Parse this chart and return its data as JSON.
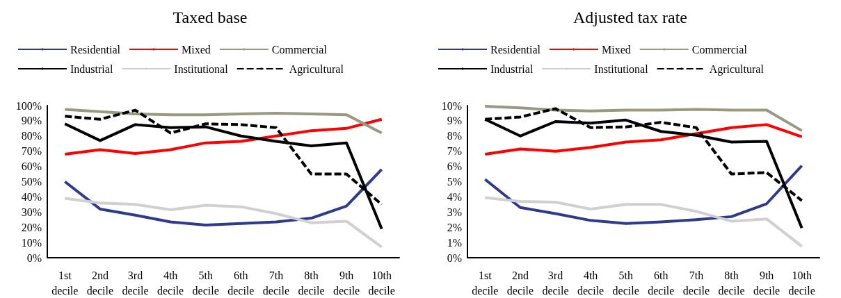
{
  "chart_data": [
    {
      "type": "line",
      "title": "Taxed base",
      "categories": [
        "1st decile",
        "2nd decile",
        "3rd decile",
        "4th decile",
        "5th decile",
        "6th decile",
        "7th decile",
        "8th decile",
        "9th decile",
        "10th decile"
      ],
      "ylim": [
        0,
        100
      ],
      "yticks": [
        {
          "value": 0,
          "label": "0%"
        },
        {
          "value": 10,
          "label": "10%"
        },
        {
          "value": 20,
          "label": "20%"
        },
        {
          "value": 30,
          "label": "30%"
        },
        {
          "value": 40,
          "label": "40%"
        },
        {
          "value": 50,
          "label": "50%"
        },
        {
          "value": 60,
          "label": "60%"
        },
        {
          "value": 70,
          "label": "70%"
        },
        {
          "value": 80,
          "label": "80%"
        },
        {
          "value": 90,
          "label": "90%"
        },
        {
          "value": 100,
          "label": "100%"
        }
      ],
      "grid": false,
      "legend": "top",
      "marker": "none",
      "series": [
        {
          "name": "Residential",
          "color": "#2e3a8c",
          "values": [
            50,
            32,
            28,
            23.5,
            21.5,
            22.5,
            23.5,
            26,
            34,
            58
          ]
        },
        {
          "name": "Mixed",
          "color": "#ff0000",
          "values": [
            68,
            71,
            68.5,
            71,
            75.5,
            76.5,
            80,
            83.5,
            85,
            91
          ]
        },
        {
          "name": "Commercial",
          "color": "#999980",
          "values": [
            97.5,
            96,
            94.5,
            94,
            94,
            94.5,
            95,
            94.5,
            94,
            82
          ]
        },
        {
          "name": "Industrial",
          "color": "#000000",
          "values": [
            88,
            77,
            87.5,
            85.5,
            86,
            80,
            76.5,
            73.5,
            75.5,
            19
          ]
        },
        {
          "name": "Institutional",
          "color": "#d0d0d0",
          "values": [
            39,
            36,
            35,
            31.5,
            34.5,
            33.5,
            29,
            23,
            24,
            7
          ]
        },
        {
          "name": "Agricultural",
          "color": "#000000",
          "line_style": "dashed",
          "values": [
            93,
            91,
            97,
            82,
            88,
            87.5,
            85.5,
            55,
            55,
            35
          ]
        }
      ]
    },
    {
      "type": "line",
      "title": "Adjusted tax rate",
      "categories": [
        "1st decile",
        "2nd decile",
        "3rd decile",
        "4th decile",
        "5th decile",
        "6th decile",
        "7th decile",
        "8th decile",
        "9th decile",
        "10th decile"
      ],
      "ylim": [
        0,
        10
      ],
      "yticks": [
        {
          "value": 0,
          "label": "0%"
        },
        {
          "value": 1,
          "label": "1%"
        },
        {
          "value": 2,
          "label": "2%"
        },
        {
          "value": 3,
          "label": "3%"
        },
        {
          "value": 4,
          "label": "4%"
        },
        {
          "value": 5,
          "label": "5%"
        },
        {
          "value": 6,
          "label": "6%"
        },
        {
          "value": 7,
          "label": "7%"
        },
        {
          "value": 8,
          "label": "8%"
        },
        {
          "value": 9,
          "label": "9%"
        },
        {
          "value": 10,
          "label": "10%"
        }
      ],
      "grid": false,
      "legend": "top",
      "marker": "none",
      "series": [
        {
          "name": "Residential",
          "color": "#2e3a8c",
          "values": [
            5.15,
            3.3,
            2.9,
            2.45,
            2.25,
            2.35,
            2.5,
            2.7,
            3.55,
            6.05
          ]
        },
        {
          "name": "Mixed",
          "color": "#ff0000",
          "values": [
            6.8,
            7.15,
            7.0,
            7.25,
            7.6,
            7.75,
            8.15,
            8.55,
            8.75,
            7.95
          ]
        },
        {
          "name": "Commercial",
          "color": "#999980",
          "values": [
            9.95,
            9.85,
            9.7,
            9.65,
            9.7,
            9.7,
            9.75,
            9.7,
            9.7,
            8.35
          ]
        },
        {
          "name": "Industrial",
          "color": "#000000",
          "values": [
            9.1,
            8.0,
            8.95,
            8.85,
            9.05,
            8.3,
            8.05,
            7.6,
            7.65,
            1.95
          ]
        },
        {
          "name": "Institutional",
          "color": "#d0d0d0",
          "values": [
            3.95,
            3.7,
            3.65,
            3.2,
            3.5,
            3.5,
            3.05,
            2.4,
            2.55,
            0.75
          ]
        },
        {
          "name": "Agricultural",
          "color": "#000000",
          "line_style": "dashed",
          "values": [
            9.1,
            9.25,
            9.8,
            8.55,
            8.6,
            8.9,
            8.55,
            5.5,
            5.6,
            3.75
          ]
        }
      ]
    }
  ]
}
